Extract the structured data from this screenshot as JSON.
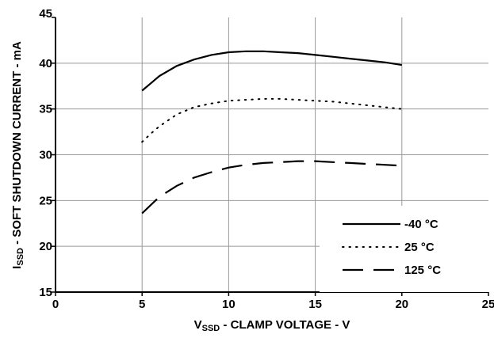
{
  "chart_data": {
    "type": "line",
    "title": "",
    "xlabel": {
      "main": "V",
      "sub": "SSD",
      "rest": " - CLAMP VOLTAGE - V"
    },
    "ylabel": {
      "main": "I",
      "sub": "SSD",
      "rest": " - SOFT SHUTDOWN CURRENT - mA"
    },
    "xlim": [
      0,
      25
    ],
    "ylim": [
      15,
      45
    ],
    "xticks": [
      0,
      5,
      10,
      15,
      20,
      25
    ],
    "yticks": [
      15,
      20,
      25,
      30,
      35,
      40,
      45
    ],
    "grid": true,
    "legend_position": "bottom-right",
    "series": [
      {
        "name": "-40 °C",
        "style": "solid",
        "x": [
          5,
          5.5,
          6,
          7,
          8,
          9,
          10,
          11,
          12,
          13,
          14,
          15,
          16,
          17,
          18,
          19,
          20
        ],
        "y": [
          37.0,
          37.8,
          38.6,
          39.7,
          40.4,
          40.9,
          41.2,
          41.3,
          41.3,
          41.2,
          41.1,
          40.9,
          40.7,
          40.5,
          40.3,
          40.1,
          39.8
        ]
      },
      {
        "name": "25 °C",
        "style": "dotted",
        "x": [
          5,
          5.5,
          6,
          7,
          8,
          9,
          10,
          11,
          12,
          13,
          14,
          15,
          16,
          17,
          18,
          19,
          20
        ],
        "y": [
          31.4,
          32.3,
          33.1,
          34.4,
          35.2,
          35.6,
          35.9,
          36.0,
          36.1,
          36.1,
          36.0,
          35.9,
          35.8,
          35.6,
          35.4,
          35.2,
          35.0
        ]
      },
      {
        "name": "125 °C",
        "style": "dashed",
        "x": [
          5,
          5.5,
          6,
          7,
          8,
          9,
          10,
          11,
          12,
          13,
          14,
          15,
          16,
          17,
          18,
          19,
          20
        ],
        "y": [
          23.6,
          24.5,
          25.4,
          26.6,
          27.5,
          28.1,
          28.6,
          28.9,
          29.1,
          29.2,
          29.3,
          29.3,
          29.2,
          29.1,
          29.0,
          28.9,
          28.8
        ]
      }
    ]
  }
}
